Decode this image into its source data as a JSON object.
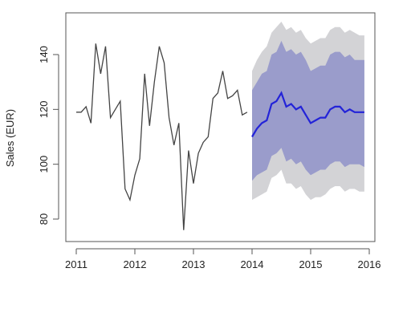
{
  "chart_data": {
    "type": "line",
    "title": "",
    "xlabel": "",
    "ylabel": "Sales (EUR)",
    "xlim": [
      2011,
      2016
    ],
    "ylim": [
      75,
      152
    ],
    "x_ticks": [
      2011,
      2012,
      2013,
      2014,
      2015,
      2016
    ],
    "x_tick_labels": [
      "2011",
      "2012",
      "2013",
      "2014",
      "2015",
      "2016"
    ],
    "y_ticks": [
      80,
      100,
      120,
      140
    ],
    "y_tick_labels": [
      "80",
      "100",
      "120",
      "140"
    ],
    "grid": false,
    "legend": "none",
    "colors": {
      "history": "#444444",
      "forecast": "#2323d8",
      "band_80": "#9a9ccb",
      "band_95": "#d3d3d6",
      "axis": "#555555"
    },
    "series": [
      {
        "x": [
          2011.0,
          2011.083,
          2011.167,
          2011.25,
          2011.333,
          2011.417,
          2011.5,
          2011.583,
          2011.667,
          2011.75,
          2011.833,
          2011.917,
          2012.0,
          2012.083,
          2012.167,
          2012.25,
          2012.333,
          2012.417,
          2012.5,
          2012.583,
          2012.667,
          2012.75,
          2012.833,
          2012.917,
          2013.0,
          2013.083,
          2013.167,
          2013.25,
          2013.333,
          2013.417,
          2013.5,
          2013.583,
          2013.667,
          2013.75,
          2013.833,
          2013.917
        ],
        "values": [
          119,
          119,
          121,
          115,
          144,
          133,
          143,
          117,
          120,
          123,
          91,
          87,
          96,
          102,
          133,
          114,
          130,
          143,
          137,
          117,
          107,
          115,
          76,
          105,
          93,
          104,
          108,
          110,
          124,
          126,
          134,
          124,
          125,
          127,
          118,
          119
        ]
      },
      {
        "x": [
          2014.0,
          2014.083,
          2014.167,
          2014.25,
          2014.333,
          2014.417,
          2014.5,
          2014.583,
          2014.667,
          2014.75,
          2014.833,
          2014.917,
          2015.0,
          2015.083,
          2015.167,
          2015.25,
          2015.333,
          2015.417,
          2015.5,
          2015.583,
          2015.667,
          2015.75,
          2015.833,
          2015.917
        ],
        "values": [
          110,
          113,
          115,
          116,
          122,
          123,
          126,
          121,
          122,
          120,
          121,
          118,
          115,
          116,
          117,
          117,
          120,
          121,
          121,
          119,
          120,
          119,
          119,
          119
        ],
        "lo80": [
          94,
          96,
          97,
          98,
          103,
          104,
          106,
          101,
          102,
          100,
          101,
          98,
          96,
          97,
          98,
          98,
          100,
          101,
          101,
          99,
          100,
          100,
          100,
          99
        ],
        "hi80": [
          127,
          130,
          133,
          134,
          140,
          141,
          145,
          141,
          142,
          140,
          141,
          138,
          134,
          135,
          136,
          136,
          140,
          141,
          141,
          139,
          140,
          138,
          138,
          138
        ],
        "lo95": [
          87,
          88,
          89,
          90,
          95,
          96,
          98,
          93,
          93,
          91,
          92,
          89,
          87,
          88,
          88,
          89,
          91,
          92,
          92,
          90,
          91,
          91,
          90,
          90
        ],
        "hi95": [
          134,
          138,
          141,
          143,
          148,
          150,
          152,
          149,
          150,
          148,
          149,
          146,
          144,
          145,
          146,
          146,
          149,
          150,
          150,
          148,
          149,
          148,
          147,
          147
        ]
      }
    ]
  }
}
